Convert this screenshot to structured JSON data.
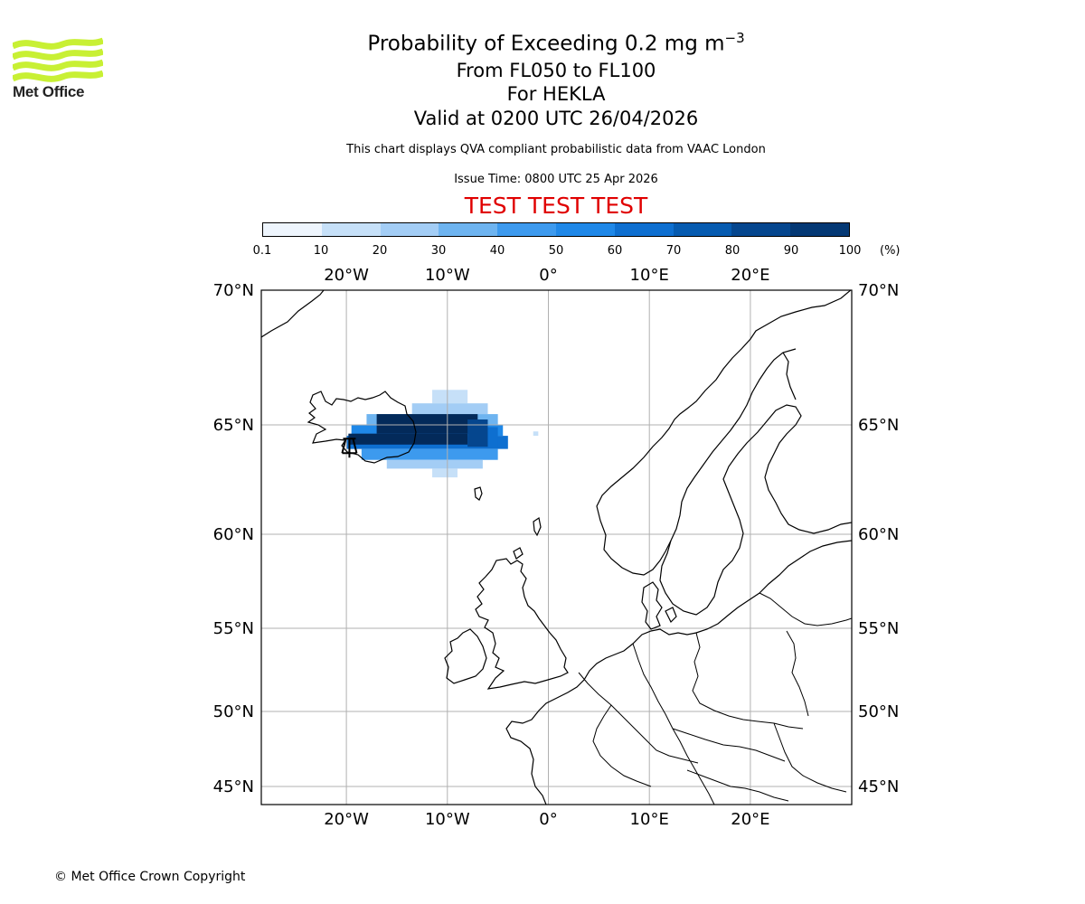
{
  "logo": {
    "name": "Met Office",
    "colour": "#c8f034"
  },
  "title": {
    "main_prefix": "Probability of Exceeding 0.2 mg m",
    "main_sup": "−3",
    "levels": "From FL050 to FL100",
    "volcano": "For HEKLA",
    "valid": "Valid at 0200 UTC 26/04/2026"
  },
  "subtitle": "This chart displays QVA compliant probabilistic data from VAAC London",
  "issue_time": "Issue Time: 0800 UTC 25 Apr 2026",
  "test_banner": "TEST TEST TEST",
  "footer": "© Met Office Crown Copyright",
  "chart_data": {
    "type": "heatmap",
    "title": "Probability of Exceeding 0.2 mg m−3",
    "colorbar": {
      "ticks": [
        "0.1",
        "10",
        "20",
        "30",
        "40",
        "50",
        "60",
        "70",
        "80",
        "90",
        "100"
      ],
      "unit": "(%)",
      "colors": [
        "#eef5fd",
        "#c6e0f8",
        "#a3cdf5",
        "#6eb4f0",
        "#3d9aee",
        "#1f88e8",
        "#0e6fd0",
        "#065bb0",
        "#05468e",
        "#043874",
        "#032a5a"
      ]
    },
    "lon_ticks": [
      "20°W",
      "10°W",
      "0°",
      "10°E",
      "20°E"
    ],
    "lon_values": [
      -20,
      -10,
      0,
      10,
      20
    ],
    "lat_ticks": [
      "70°N",
      "65°N",
      "60°N",
      "55°N",
      "50°N",
      "45°N"
    ],
    "lat_values": [
      70,
      65,
      60,
      55,
      50,
      45
    ],
    "lon_range": [
      -28.5,
      30
    ],
    "lat_range": [
      44.5,
      70
    ],
    "volcano": {
      "name": "HEKLA",
      "lon": -19.7,
      "lat": 64.0
    },
    "plume": {
      "cell_deg_lon": 0.6,
      "cell_deg_lat": 0.3,
      "bands": [
        {
          "lat_min": 65.8,
          "lat_max": 66.3,
          "lon_min": -11.5,
          "lon_max": -8.0,
          "class": 1
        },
        {
          "lat_min": 65.4,
          "lat_max": 65.8,
          "lon_min": -13.5,
          "lon_max": -6.0,
          "class": 2
        },
        {
          "lat_min": 65.0,
          "lat_max": 65.4,
          "lon_min": -18.0,
          "lon_max": -5.0,
          "class": 3
        },
        {
          "lat_min": 64.5,
          "lat_max": 65.0,
          "lon_min": -19.5,
          "lon_max": -4.5,
          "class": 5
        },
        {
          "lat_min": 63.9,
          "lat_max": 64.5,
          "lon_min": -20.0,
          "lon_max": -4.0,
          "class": 6
        },
        {
          "lat_min": 63.4,
          "lat_max": 63.9,
          "lon_min": -18.5,
          "lon_max": -5.0,
          "class": 4
        },
        {
          "lat_min": 63.0,
          "lat_max": 63.4,
          "lon_min": -16.0,
          "lon_max": -6.5,
          "class": 2
        },
        {
          "lat_min": 62.6,
          "lat_max": 63.0,
          "lon_min": -11.5,
          "lon_max": -9.0,
          "class": 1
        },
        {
          "lat_min": 64.6,
          "lat_max": 65.4,
          "lon_min": -17.0,
          "lon_max": -7.0,
          "class": 10
        },
        {
          "lat_min": 64.1,
          "lat_max": 64.6,
          "lon_min": -19.8,
          "lon_max": -8.0,
          "class": 10
        },
        {
          "lat_min": 64.0,
          "lat_max": 65.2,
          "lon_min": -8.0,
          "lon_max": -6.0,
          "class": 8
        },
        {
          "lat_min": 64.0,
          "lat_max": 64.9,
          "lon_min": -6.0,
          "lon_max": -5.0,
          "class": 6
        },
        {
          "lat_min": 64.5,
          "lat_max": 64.7,
          "lon_min": -1.5,
          "lon_max": -1.0,
          "class": 1
        }
      ]
    }
  }
}
